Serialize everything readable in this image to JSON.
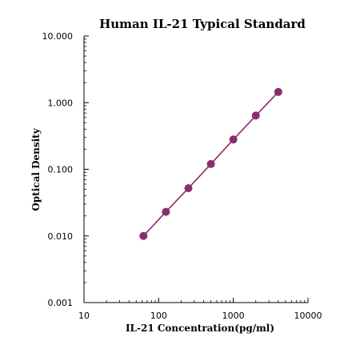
{
  "chart_data": {
    "type": "scatter",
    "title": "Human  IL-21 Typical Standard",
    "xlabel": "IL-21 Concentration(pg/ml)",
    "ylabel": "Optical Density",
    "xscale": "log",
    "yscale": "log",
    "xlim": [
      10,
      10000
    ],
    "ylim": [
      0.001,
      10
    ],
    "x_ticks": [
      "10",
      "100",
      "1000",
      "10000"
    ],
    "y_ticks": [
      "0.001",
      "0.010",
      "0.100",
      "1.000",
      "10.000"
    ],
    "grid": false,
    "connected": true,
    "series": [
      {
        "x": [
          62.5,
          125,
          250,
          500,
          1000,
          2000,
          4000
        ],
        "y": [
          0.01,
          0.023,
          0.052,
          0.12,
          0.28,
          0.64,
          1.45
        ]
      }
    ],
    "colors": {
      "marker": "#8a2e6b",
      "line": "#8a2e6b",
      "axis": "#000000"
    }
  }
}
